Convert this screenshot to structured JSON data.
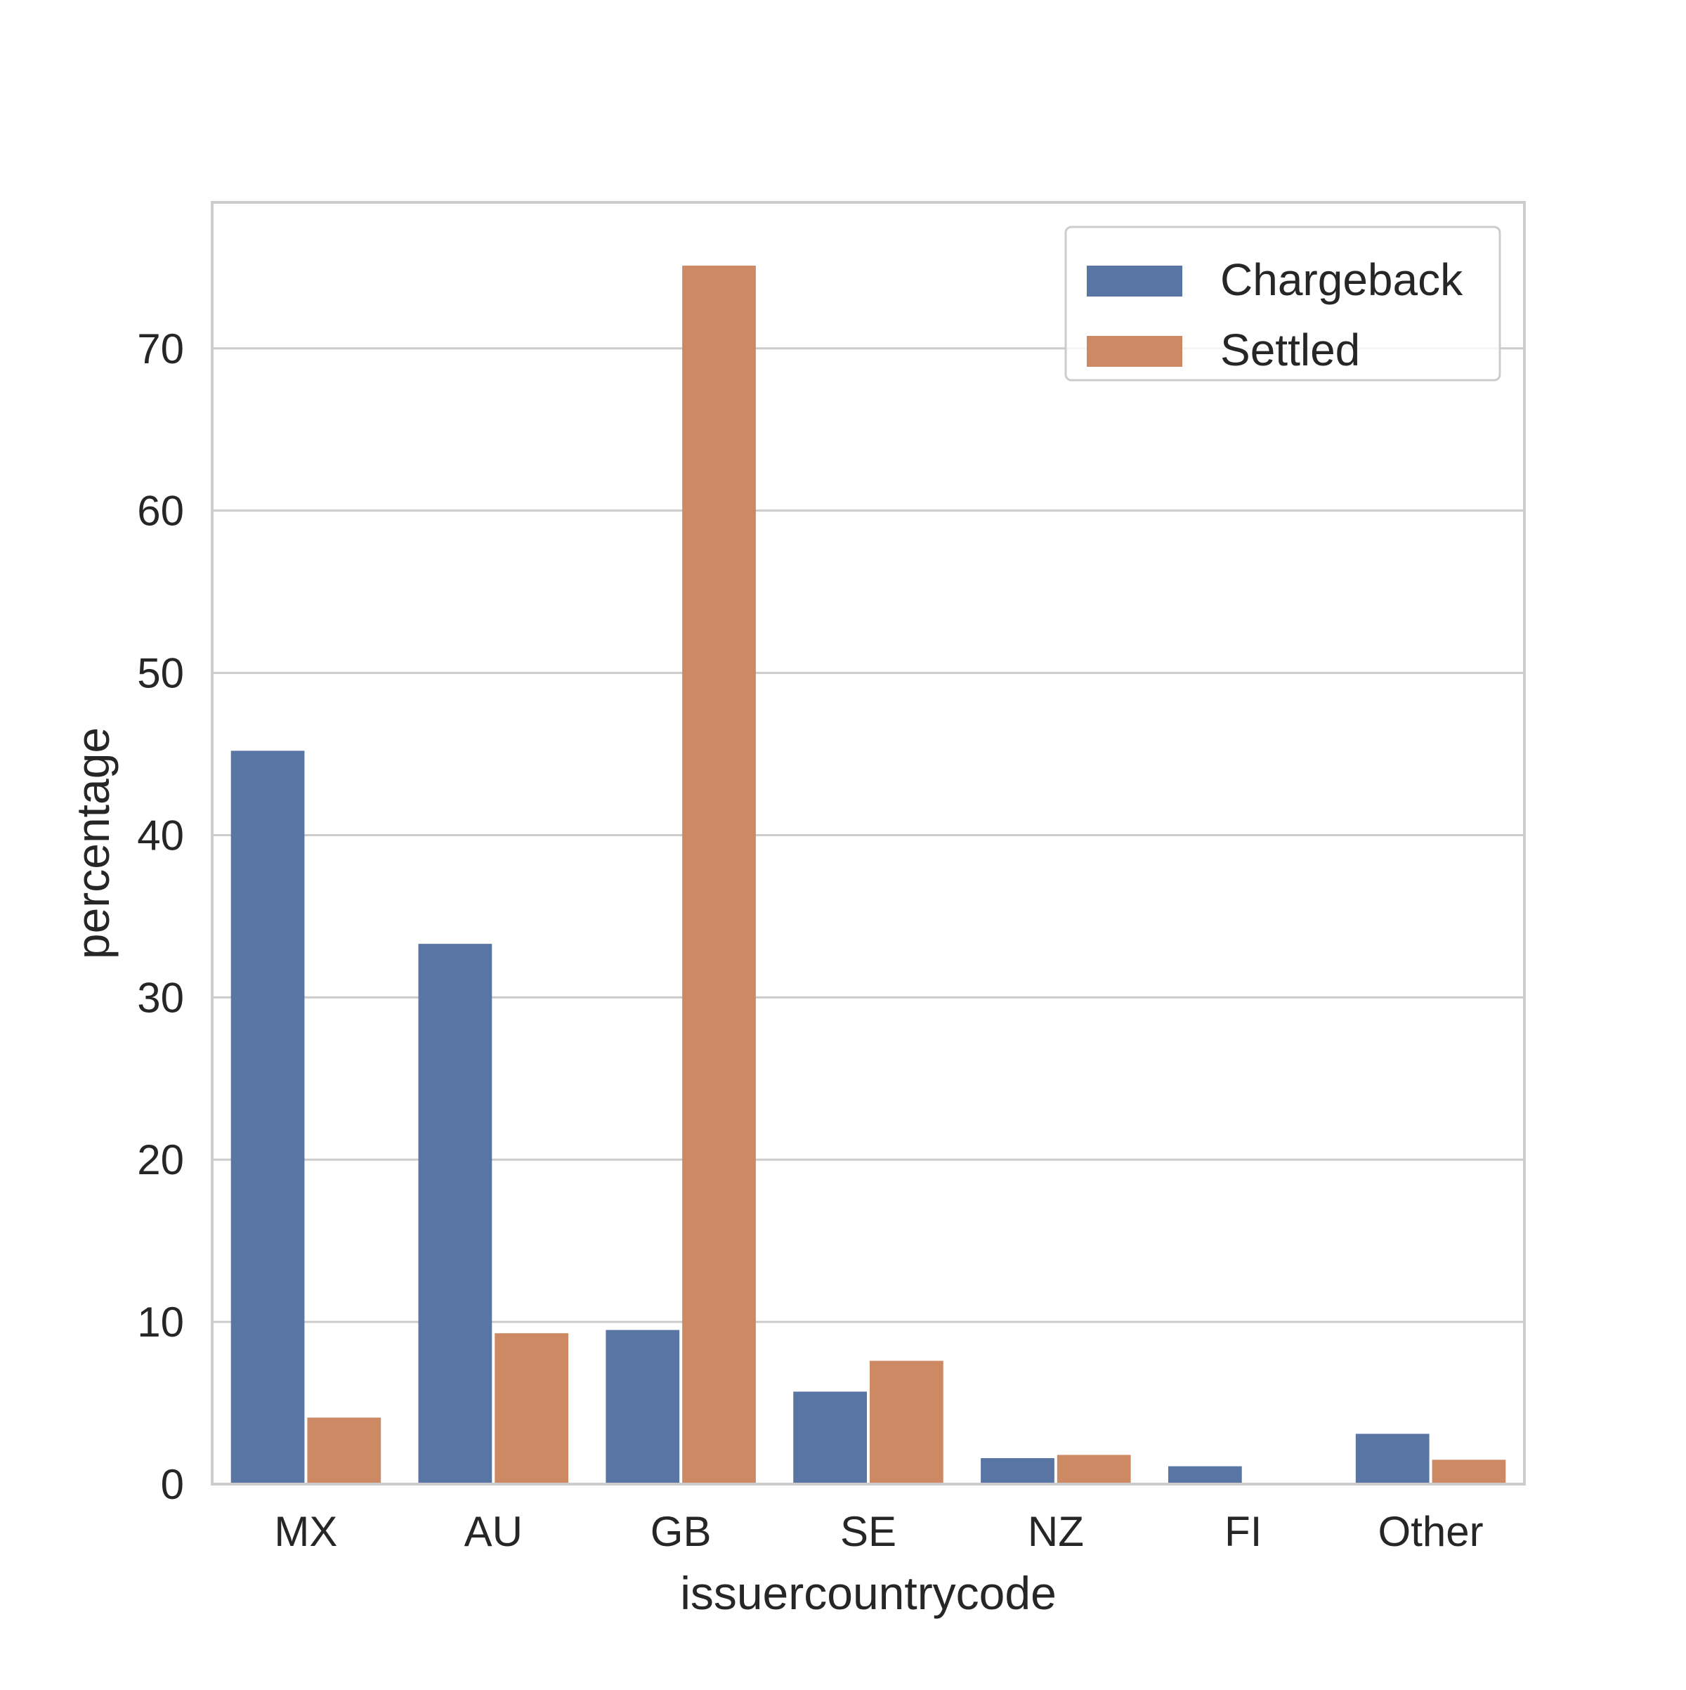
{
  "chart_data": {
    "type": "bar",
    "categories": [
      "MX",
      "AU",
      "GB",
      "SE",
      "NZ",
      "FI",
      "Other"
    ],
    "series": [
      {
        "name": "Chargeback",
        "color": "#5975a4",
        "values": [
          45.2,
          33.3,
          9.5,
          5.7,
          1.6,
          1.1,
          3.1
        ]
      },
      {
        "name": "Settled",
        "color": "#cc8963",
        "values": [
          4.1,
          9.3,
          75.1,
          7.6,
          1.8,
          0.0,
          1.5
        ]
      }
    ],
    "title": "",
    "xlabel": "issuercountrycode",
    "ylabel": "percentage",
    "ylim": [
      0,
      79
    ],
    "yticks": [
      0,
      10,
      20,
      30,
      40,
      50,
      60,
      70
    ],
    "grid": "horizontal",
    "legend_position": "top-right",
    "frame_color": "#cccccc",
    "grid_color": "#cccccc"
  }
}
